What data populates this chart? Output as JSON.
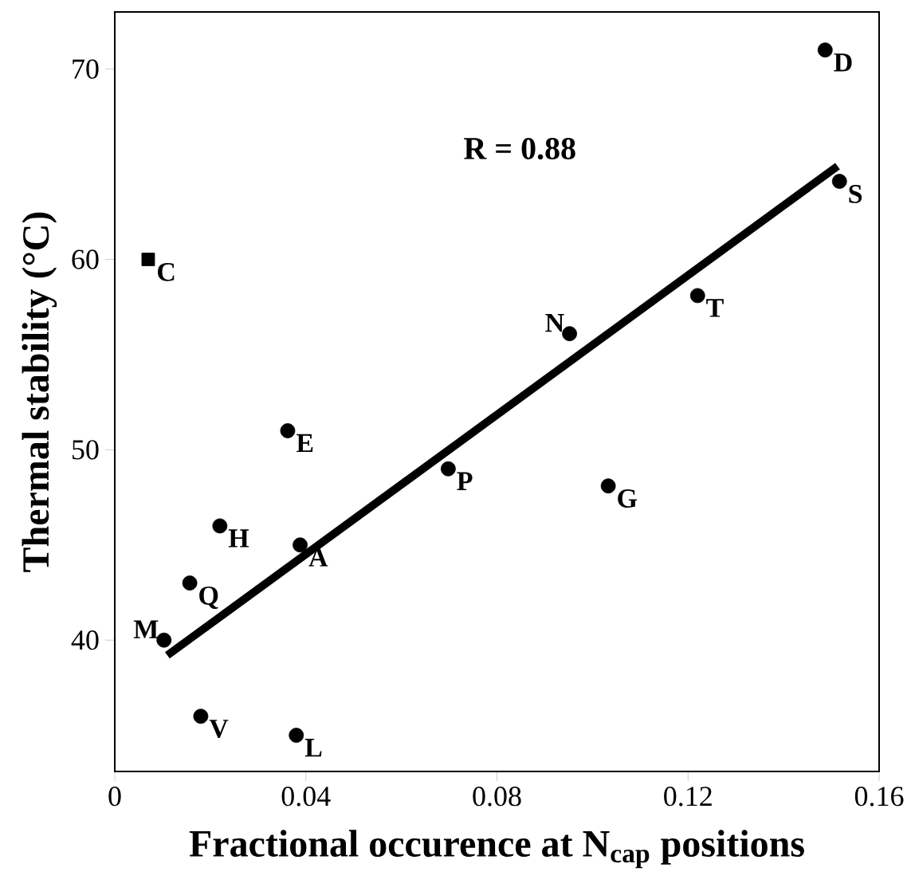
{
  "chart_data": {
    "type": "scatter",
    "xlabel": "Fractional occurence at N$_{cap}$ positions",
    "ylabel": "Thermal stability (°C)",
    "xlim": [
      0,
      0.16
    ],
    "xticks": [
      0,
      0.04,
      0.08,
      0.12,
      0.16
    ],
    "ylim": [
      33.1,
      73.0
    ],
    "yticks": [
      40,
      50,
      60,
      70
    ],
    "annotations": [
      "R = 0.88"
    ],
    "grid": false,
    "series": [
      {
        "marker": "circle",
        "color": "#000000",
        "x": [
          0.1487,
          0.1517,
          0.122,
          0.0952,
          0.0362,
          0.0698,
          0.1033,
          0.022,
          0.0388,
          0.0157,
          0.0103,
          0.018,
          0.038
        ],
        "values": [
          71.0,
          64.1,
          58.1,
          56.1,
          51.0,
          49.0,
          48.1,
          46.0,
          45.0,
          43.0,
          40.0,
          36.0,
          35.0
        ],
        "value_labels": [
          "D",
          "S",
          "T",
          "N",
          "E",
          "P",
          "G",
          "H",
          "A",
          "Q",
          "M",
          "V",
          "L"
        ]
      },
      {
        "marker": "square",
        "color": "#000000",
        "x": [
          0.007
        ],
        "values": [
          60.0
        ],
        "value_labels": [
          "C"
        ]
      },
      {
        "type": "line",
        "marker": "none",
        "line_style": "solid",
        "color": "#000000",
        "x": [
          0.011,
          0.1513
        ],
        "values": [
          39.2,
          64.9
        ]
      }
    ]
  }
}
